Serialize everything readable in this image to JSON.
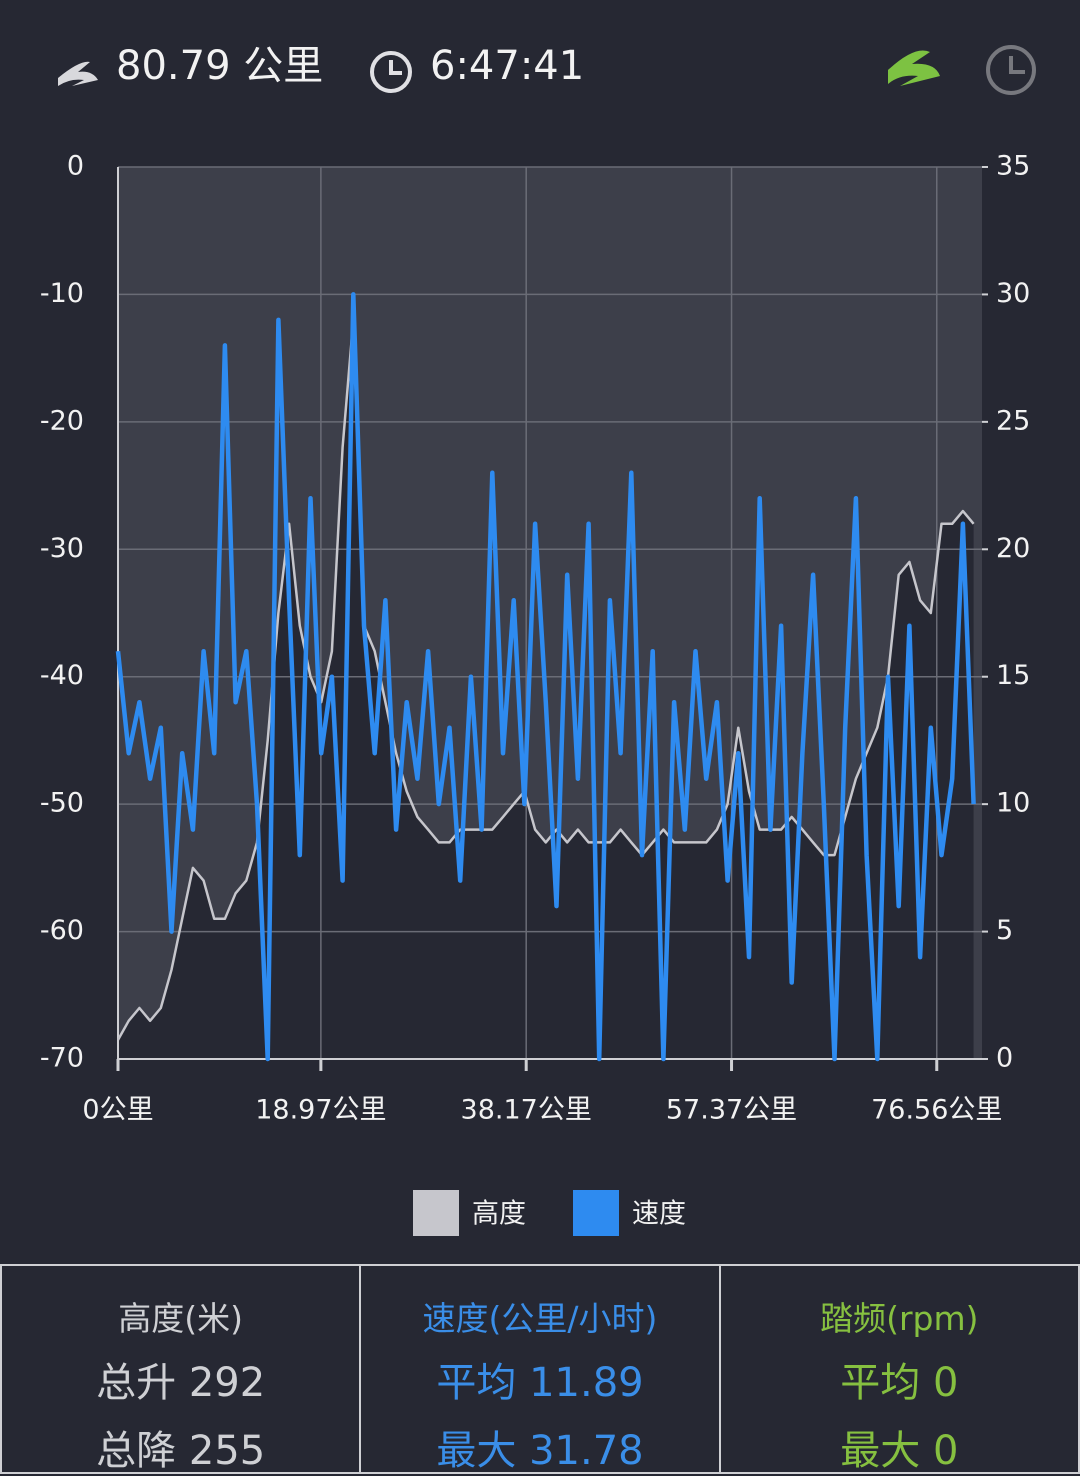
{
  "header": {
    "distance": "80.79 公里",
    "duration": "6:47:41"
  },
  "chart_data": {
    "type": "line",
    "x": [
      0,
      1,
      2,
      3,
      4,
      5,
      6,
      7,
      8,
      9,
      10,
      11,
      12,
      13,
      14,
      15,
      16,
      17,
      18,
      19,
      20,
      21,
      22,
      23,
      24,
      25,
      26,
      27,
      28,
      29,
      30,
      31,
      32,
      33,
      34,
      35,
      36,
      37,
      38,
      39,
      40,
      41,
      42,
      43,
      44,
      45,
      46,
      47,
      48,
      49,
      50,
      51,
      52,
      53,
      54,
      55,
      56,
      57,
      58,
      59,
      60,
      61,
      62,
      63,
      64,
      65,
      66,
      67,
      68,
      69,
      70,
      71,
      72,
      73,
      74,
      75,
      76,
      77,
      78,
      79,
      80
    ],
    "series": [
      {
        "name": "高度",
        "color": "#c6c6cc",
        "axis": "y",
        "values": [
          -68.5,
          -67,
          -66,
          -67,
          -66,
          -63,
          -59,
          -55,
          -56,
          -59,
          -59,
          -57,
          -56,
          -53,
          -45,
          -35,
          -28,
          -36,
          -40,
          -42,
          -38,
          -22,
          -12,
          -36,
          -38,
          -42,
          -46,
          -49,
          -51,
          -52,
          -53,
          -53,
          -52,
          -52,
          -52,
          -52,
          -51,
          -50,
          -49,
          -52,
          -53,
          -52,
          -53,
          -52,
          -53,
          -53,
          -53,
          -52,
          -53,
          -54,
          -53,
          -52,
          -53,
          -53,
          -53,
          -53,
          -52,
          -50,
          -44,
          -49,
          -52,
          -52,
          -52,
          -51,
          -52,
          -53,
          -54,
          -54,
          -51,
          -48,
          -46,
          -44,
          -40,
          -32,
          -31,
          -34,
          -35,
          -28,
          -28,
          -27,
          -28
        ]
      },
      {
        "name": "速度",
        "color": "#2e8bf0",
        "axis": "y2",
        "values": [
          16,
          12,
          14,
          11,
          13,
          5,
          12,
          9,
          16,
          12,
          28,
          14,
          16,
          10,
          0,
          29,
          18,
          8,
          22,
          12,
          15,
          7,
          30,
          17,
          12,
          18,
          9,
          14,
          11,
          16,
          10,
          13,
          7,
          15,
          9,
          23,
          12,
          18,
          10,
          21,
          14,
          6,
          19,
          11,
          21,
          0,
          18,
          12,
          23,
          8,
          16,
          0,
          14,
          9,
          16,
          11,
          14,
          7,
          12,
          4,
          22,
          9,
          17,
          3,
          12,
          19,
          10,
          0,
          13,
          22,
          8,
          0,
          15,
          6,
          17,
          4,
          13,
          8,
          11,
          21,
          10
        ]
      }
    ],
    "xlim": [
      0,
      80.79
    ],
    "xticks": [
      {
        "value": 0,
        "label": "0公里"
      },
      {
        "value": 18.97,
        "label": "18.97公里"
      },
      {
        "value": 38.17,
        "label": "38.17公里"
      },
      {
        "value": 57.37,
        "label": "57.37公里"
      },
      {
        "value": 76.56,
        "label": "76.56公里"
      }
    ],
    "ylim": [
      -70,
      0
    ],
    "yticks": [
      0,
      -10,
      -20,
      -30,
      -40,
      -50,
      -60,
      -70
    ],
    "y2lim": [
      0,
      35
    ],
    "y2ticks": [
      35,
      30,
      25,
      20,
      15,
      10,
      5,
      0
    ],
    "grid": true
  },
  "stats": [
    {
      "title": "高度(米)",
      "line1": "总升 292",
      "line2": "总降 255"
    },
    {
      "title": "速度(公里/小时)",
      "line1": "平均 11.89",
      "line2": "最大 31.78"
    },
    {
      "title": "踏频(rpm)",
      "line1": "平均 0",
      "line2": "最大 0"
    }
  ]
}
